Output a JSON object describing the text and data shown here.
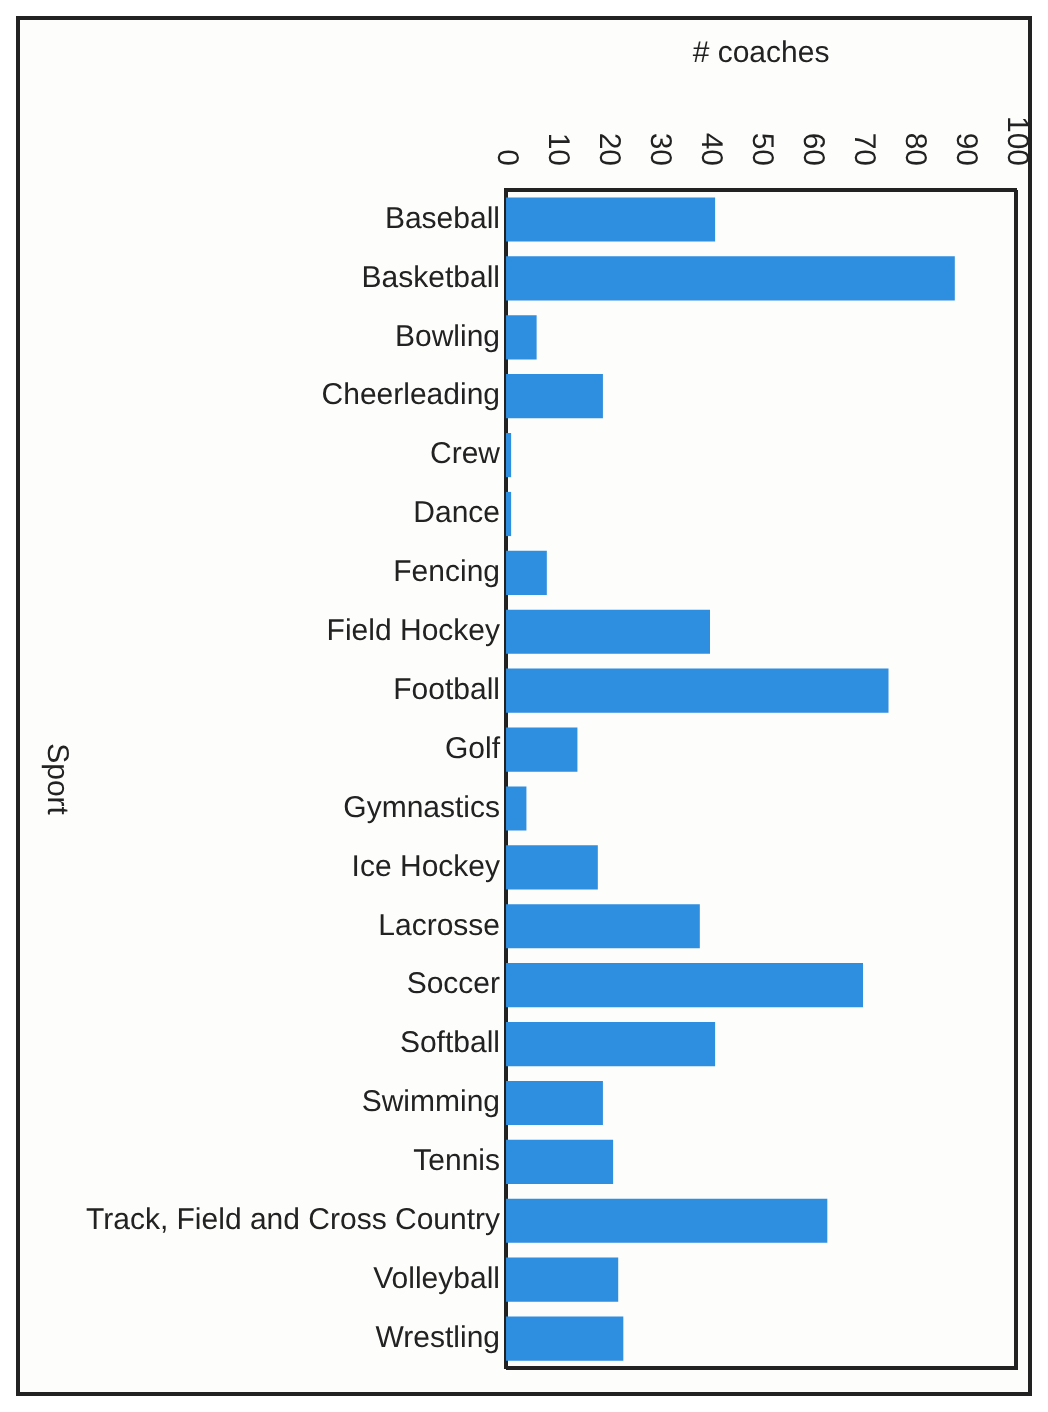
{
  "chart_data": {
    "type": "bar",
    "orientation": "horizontal",
    "xlabel": "# coaches",
    "ylabel": "Sport",
    "categories": [
      "Baseball",
      "Basketball",
      "Bowling",
      "Cheerleading",
      "Crew",
      "Dance",
      "Fencing",
      "Field Hockey",
      "Football",
      "Golf",
      "Gymnastics",
      "Ice Hockey",
      "Lacrosse",
      "Soccer",
      "Softball",
      "Swimming",
      "Tennis",
      "Track, Field and Cross Country",
      "Volleyball",
      "Wrestling"
    ],
    "values": [
      41,
      88,
      6,
      19,
      1,
      1,
      8,
      40,
      75,
      14,
      4,
      18,
      38,
      70,
      41,
      19,
      21,
      63,
      22,
      23
    ],
    "color": "#2e8ee0",
    "xlim": [
      0,
      100
    ],
    "xticks": [
      0,
      10,
      20,
      30,
      40,
      50,
      60,
      70,
      80,
      90,
      100
    ],
    "grid": false,
    "legend": false
  }
}
